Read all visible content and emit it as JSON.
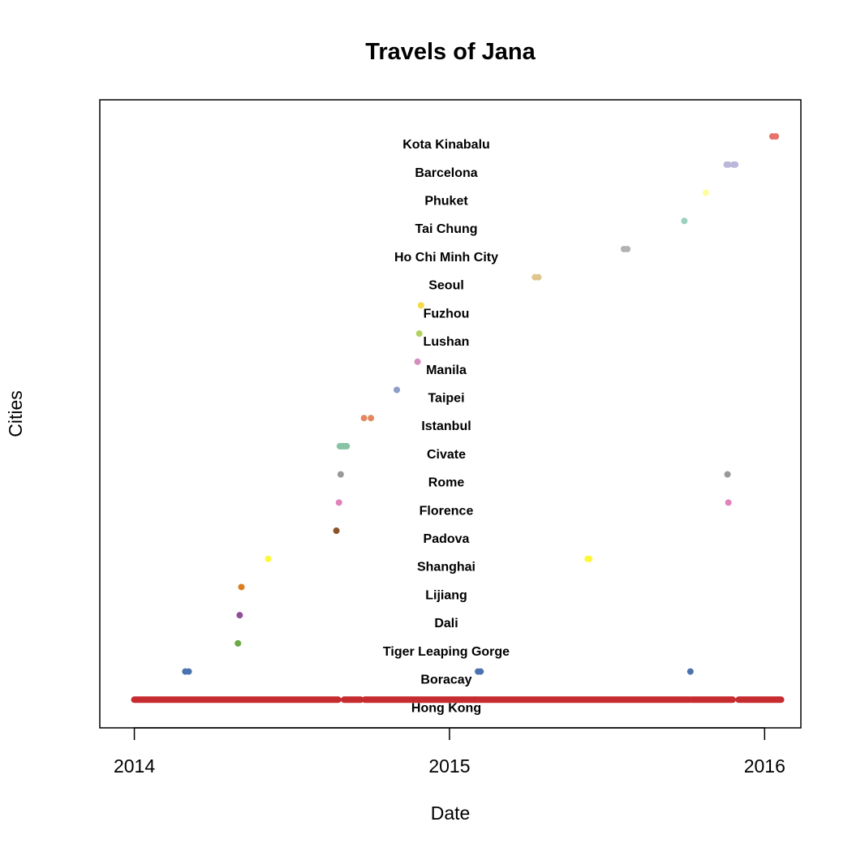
{
  "chart_data": {
    "type": "scatter",
    "title": "Travels of Jana",
    "xlabel": "Date",
    "ylabel": "Cities",
    "x_ticks": [
      {
        "date": "2014-01-01",
        "label": "2014"
      },
      {
        "date": "2015-01-01",
        "label": "2015"
      },
      {
        "date": "2016-01-01",
        "label": "2016"
      }
    ],
    "xlim": [
      "2013-11-22",
      "2016-02-12"
    ],
    "ylim": [
      0,
      22.3
    ],
    "grid": false,
    "legend": "none",
    "series": [
      {
        "name": "Hong Kong",
        "level": 1,
        "color": "#C62B2F",
        "segments": [
          [
            "2014-01-01",
            "2014-03-31"
          ],
          [
            "2014-04-01",
            "2014-05-05"
          ],
          [
            "2014-05-06",
            "2014-08-25"
          ],
          [
            "2014-09-01",
            "2014-09-20"
          ],
          [
            "2014-09-25",
            "2015-01-31"
          ],
          [
            "2015-01-31",
            "2015-04-30"
          ],
          [
            "2015-05-01",
            "2015-06-29"
          ],
          [
            "2015-06-30",
            "2015-07-24"
          ],
          [
            "2015-07-25",
            "2015-10-06"
          ],
          [
            "2015-10-08",
            "2015-11-25"
          ],
          [
            "2015-12-02",
            "2016-01-20"
          ]
        ]
      },
      {
        "name": "Boracay",
        "level": 2,
        "color": "#4A72AF",
        "points": [
          "2014-03-01",
          "2014-03-05",
          "2015-02-03",
          "2015-02-06",
          "2015-10-07"
        ]
      },
      {
        "name": "Tiger Leaping Gorge",
        "level": 3,
        "color": "#6AA944",
        "points": [
          "2014-05-01"
        ]
      },
      {
        "name": "Dali",
        "level": 4,
        "color": "#8E4F96",
        "points": [
          "2014-05-03"
        ]
      },
      {
        "name": "Lijiang",
        "level": 5,
        "color": "#DD7D1E",
        "points": [
          "2014-05-05"
        ]
      },
      {
        "name": "Shanghai",
        "level": 6,
        "color": "#FFF83A",
        "points": [
          "2014-06-05",
          "2015-06-10",
          "2015-06-12"
        ]
      },
      {
        "name": "Padova",
        "level": 7,
        "color": "#8B5127",
        "points": [
          "2014-08-23"
        ]
      },
      {
        "name": "Florence",
        "level": 8,
        "color": "#E183BB",
        "points": [
          "2014-08-26",
          "2015-11-20"
        ]
      },
      {
        "name": "Rome",
        "level": 9,
        "color": "#999999",
        "points": [
          "2014-08-28",
          "2015-11-19"
        ]
      },
      {
        "name": "Civate",
        "level": 10,
        "color": "#87C3A4",
        "points": [
          "2014-08-27",
          "2014-08-29",
          "2014-08-31",
          "2014-09-02",
          "2014-09-04"
        ]
      },
      {
        "name": "Istanbul",
        "level": 11,
        "color": "#E4875F",
        "points": [
          "2014-09-24",
          "2014-10-02"
        ]
      },
      {
        "name": "Taipei",
        "level": 12,
        "color": "#8F9EC8",
        "points": [
          "2014-11-01"
        ]
      },
      {
        "name": "Manila",
        "level": 13,
        "color": "#D68ABE",
        "points": [
          "2014-11-25"
        ]
      },
      {
        "name": "Lushan",
        "level": 14,
        "color": "#B1D25C",
        "points": [
          "2014-11-27"
        ]
      },
      {
        "name": "Fuzhou",
        "level": 15,
        "color": "#F6D84A",
        "points": [
          "2014-11-29"
        ]
      },
      {
        "name": "Seoul",
        "level": 16,
        "color": "#DEC68E",
        "points": [
          "2015-04-10",
          "2015-04-14"
        ]
      },
      {
        "name": "Ho Chi Minh City",
        "level": 17,
        "color": "#B3B3B3",
        "points": [
          "2015-07-22",
          "2015-07-26"
        ]
      },
      {
        "name": "Tai Chung",
        "level": 18,
        "color": "#9DD1BE",
        "points": [
          "2015-09-30"
        ]
      },
      {
        "name": "Phuket",
        "level": 19,
        "color": "#FEFD9E",
        "points": [
          "2015-10-25"
        ]
      },
      {
        "name": "Barcelona",
        "level": 20,
        "color": "#BBB7D9",
        "points": [
          "2015-11-18",
          "2015-11-20",
          "2015-11-26",
          "2015-11-28"
        ]
      },
      {
        "name": "Kota Kinabalu",
        "level": 21,
        "color": "#E5726B",
        "points": [
          "2016-01-10",
          "2016-01-14"
        ]
      }
    ]
  }
}
